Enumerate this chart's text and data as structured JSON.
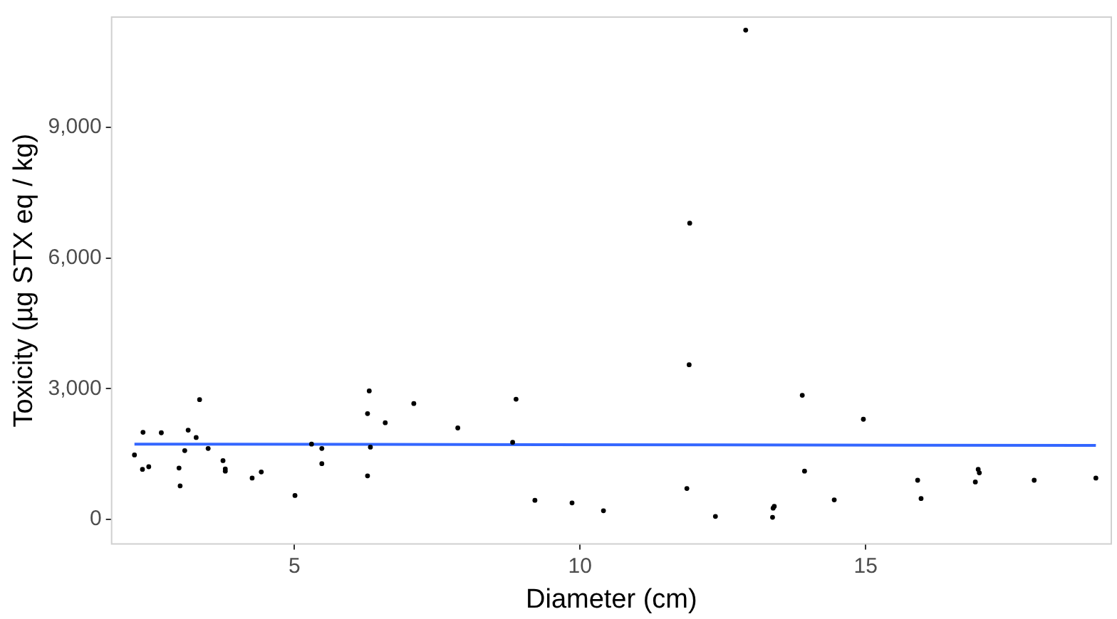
{
  "chart_data": {
    "type": "scatter",
    "xlabel": "Diameter (cm)",
    "ylabel": "Toxicity (µg STX eq / kg)",
    "xlim": [
      1.8,
      19.3
    ],
    "xticks": [
      5,
      10,
      15
    ],
    "ylim": [
      -560,
      11530
    ],
    "yticks": [
      {
        "value": 0,
        "label": "0"
      },
      {
        "value": 3000,
        "label": "3,000"
      },
      {
        "value": 6000,
        "label": "6,000"
      },
      {
        "value": 9000,
        "label": "9,000"
      }
    ],
    "grid": false,
    "legend": false,
    "series": [
      {
        "marker": "circle",
        "color": "#000000",
        "x": [
          2.2,
          2.35,
          2.34,
          2.45,
          2.67,
          2.98,
          3.0,
          3.08,
          3.14,
          3.28,
          3.34,
          3.49,
          3.75,
          3.79,
          3.79,
          4.26,
          4.42,
          5.01,
          5.3,
          5.48,
          5.48,
          6.28,
          6.31,
          6.33,
          6.28,
          6.59,
          7.09,
          7.86,
          8.88,
          8.82,
          9.21,
          9.86,
          10.41,
          11.91,
          11.92,
          11.87,
          12.9,
          12.37,
          13.38,
          13.4,
          13.37,
          13.89,
          13.93,
          14.45,
          14.96,
          15.91,
          15.97,
          16.97,
          16.99,
          16.92,
          17.95,
          19.03
        ],
        "values": [
          1480,
          2000,
          1150,
          1210,
          1990,
          1180,
          770,
          1580,
          2050,
          1880,
          2750,
          1630,
          1350,
          1160,
          1110,
          950,
          1090,
          550,
          1730,
          1630,
          1280,
          2430,
          2950,
          1660,
          1000,
          2220,
          2660,
          2100,
          2760,
          1770,
          440,
          380,
          200,
          3550,
          6800,
          710,
          11230,
          70,
          260,
          300,
          50,
          2850,
          1110,
          450,
          2300,
          900,
          480,
          1150,
          1070,
          860,
          900,
          950
        ]
      },
      {
        "type": "line",
        "color": "#3366ff",
        "x": [
          2.2,
          19.03
        ],
        "values": [
          1730,
          1700
        ]
      }
    ]
  }
}
